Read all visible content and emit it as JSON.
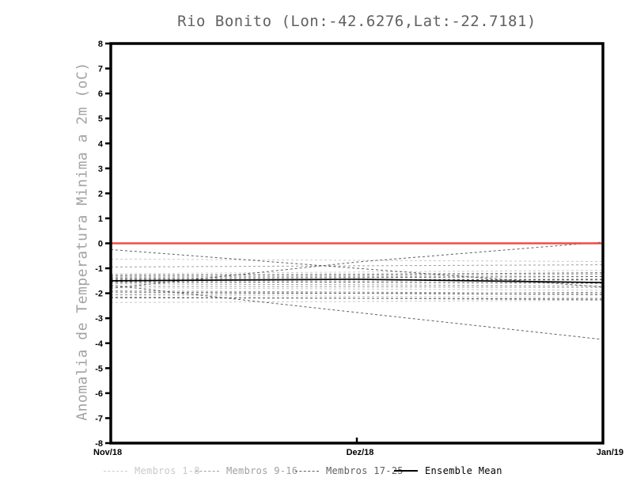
{
  "title": "Rio Bonito (Lon:-42.6276,Lat:-22.7181)",
  "chart_data": {
    "type": "line",
    "title": "Rio Bonito (Lon:-42.6276,Lat:-22.7181)",
    "ylabel": "Anomalia de Temperatura Minima a 2m (oC)",
    "xlabel": "",
    "x_categories": [
      "Nov/18",
      "Dez/18",
      "Jan/19"
    ],
    "ylim": [
      -8,
      8
    ],
    "yticks": [
      8,
      7,
      6,
      5,
      4,
      3,
      2,
      1,
      0,
      -1,
      -2,
      -3,
      -4,
      -5,
      -6,
      -7,
      -8
    ],
    "grid": false,
    "legend_position": "bottom",
    "groups": {
      "members_1_8": {
        "color": "#c9c9c9",
        "dash": "3 3",
        "width": 1
      },
      "members_9_16": {
        "color": "#9f9f9f",
        "dash": "3 3",
        "width": 1
      },
      "members_17_25": {
        "color": "#5f5f5f",
        "dash": "3 3",
        "width": 1
      },
      "ensemble_mean": {
        "color": "#000000",
        "dash": null,
        "width": 1.7
      },
      "zero_line": {
        "color": "#f04b47",
        "dash": null,
        "width": 2.4
      }
    },
    "series": [
      {
        "name": "member-1",
        "group": "members_1_8",
        "values": [
          -0.63,
          -0.68,
          -0.73
        ]
      },
      {
        "name": "member-2",
        "group": "members_1_8",
        "values": [
          -1.22,
          -1.15,
          -1.08
        ]
      },
      {
        "name": "member-3",
        "group": "members_1_8",
        "values": [
          -1.32,
          -1.33,
          -1.34
        ]
      },
      {
        "name": "member-4",
        "group": "members_1_8",
        "values": [
          -1.48,
          -1.45,
          -1.42
        ]
      },
      {
        "name": "member-5",
        "group": "members_1_8",
        "values": [
          -1.58,
          -1.52,
          -1.47
        ]
      },
      {
        "name": "member-6",
        "group": "members_1_8",
        "values": [
          -1.78,
          -1.83,
          -1.88
        ]
      },
      {
        "name": "member-7",
        "group": "members_1_8",
        "values": [
          -2.07,
          -2.12,
          -2.17
        ]
      },
      {
        "name": "member-8",
        "group": "members_1_8",
        "values": [
          -2.37,
          -2.33,
          -2.28
        ]
      },
      {
        "name": "member-9",
        "group": "members_9_16",
        "values": [
          -0.95,
          -0.9,
          -0.86
        ]
      },
      {
        "name": "member-10",
        "group": "members_9_16",
        "values": [
          -1.35,
          -1.3,
          -1.24
        ]
      },
      {
        "name": "member-11",
        "group": "members_9_16",
        "values": [
          -1.52,
          -1.47,
          -1.44
        ]
      },
      {
        "name": "member-12",
        "group": "members_9_16",
        "values": [
          -1.62,
          -1.66,
          -1.71
        ]
      },
      {
        "name": "member-13",
        "group": "members_9_16",
        "values": [
          -1.72,
          -1.74,
          -1.77
        ]
      },
      {
        "name": "member-14",
        "group": "members_9_16",
        "values": [
          -1.9,
          -1.95,
          -2.0
        ]
      },
      {
        "name": "member-15",
        "group": "members_9_16",
        "values": [
          -2.05,
          -2.0,
          -1.96
        ]
      },
      {
        "name": "member-16",
        "group": "members_9_16",
        "values": [
          -2.15,
          -2.2,
          -2.27
        ]
      },
      {
        "name": "member-17",
        "group": "members_17_25",
        "values": [
          -0.25,
          -1.0,
          -1.75
        ]
      },
      {
        "name": "member-18",
        "group": "members_17_25",
        "values": [
          -1.8,
          -0.75,
          0.05
        ]
      },
      {
        "name": "member-19",
        "group": "members_17_25",
        "values": [
          -1.68,
          -2.77,
          -3.85
        ]
      },
      {
        "name": "member-20",
        "group": "members_17_25",
        "values": [
          -1.4,
          -1.37,
          -1.33
        ]
      },
      {
        "name": "member-21",
        "group": "members_17_25",
        "values": [
          -1.45,
          -1.45,
          -1.46
        ]
      },
      {
        "name": "member-22",
        "group": "members_17_25",
        "values": [
          -1.28,
          -1.24,
          -1.18
        ]
      },
      {
        "name": "member-23",
        "group": "members_17_25",
        "values": [
          -1.55,
          -1.56,
          -1.6
        ]
      },
      {
        "name": "member-24",
        "group": "members_17_25",
        "values": [
          -1.95,
          -2.0,
          -2.06
        ]
      },
      {
        "name": "member-25",
        "group": "members_17_25",
        "values": [
          -2.18,
          -2.2,
          -2.23
        ]
      },
      {
        "name": "ensemble-mean",
        "group": "ensemble_mean",
        "values": [
          -1.5,
          -1.44,
          -1.57
        ]
      },
      {
        "name": "zero-reference",
        "group": "zero_line",
        "values": [
          0,
          0,
          0
        ]
      }
    ],
    "legend": [
      {
        "label": "Membros 1-8",
        "group": "members_1_8"
      },
      {
        "label": "Membros 9-16",
        "group": "members_9_16"
      },
      {
        "label": "Membros 17-25",
        "group": "members_17_25"
      },
      {
        "label": "Ensemble Mean",
        "group": "ensemble_mean"
      }
    ]
  }
}
